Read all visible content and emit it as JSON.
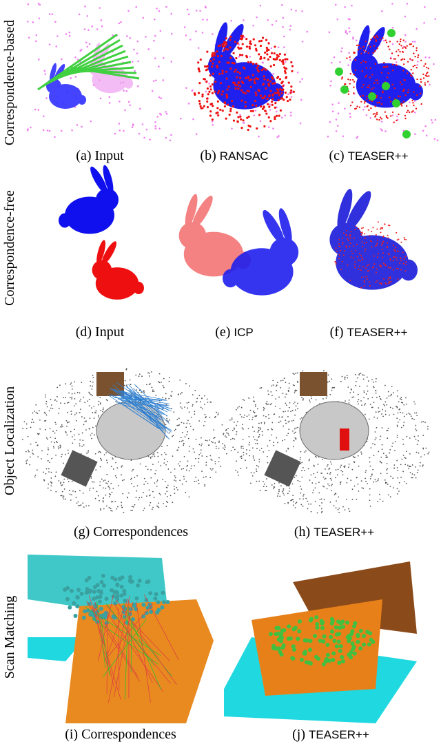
{
  "rows": [
    {
      "label": "Correspondence-based",
      "panels": [
        {
          "tag": "(a)",
          "name": "Input"
        },
        {
          "tag": "(b)",
          "name": "RANSAC"
        },
        {
          "tag": "(c)",
          "name": "TEASER++"
        }
      ]
    },
    {
      "label": "Correspondence-free",
      "panels": [
        {
          "tag": "(d)",
          "name": "Input"
        },
        {
          "tag": "(e)",
          "name": "ICP"
        },
        {
          "tag": "(f)",
          "name": "TEASER++"
        }
      ]
    },
    {
      "label": "Object Localization",
      "panels": [
        {
          "tag": "(g)",
          "name": "Correspondences"
        },
        {
          "tag": "(h)",
          "name": "TEASER++"
        }
      ]
    },
    {
      "label": "Scan Matching",
      "panels": [
        {
          "tag": "(i)",
          "name": "Correspondences"
        },
        {
          "tag": "(j)",
          "name": "TEASER++"
        }
      ]
    }
  ]
}
